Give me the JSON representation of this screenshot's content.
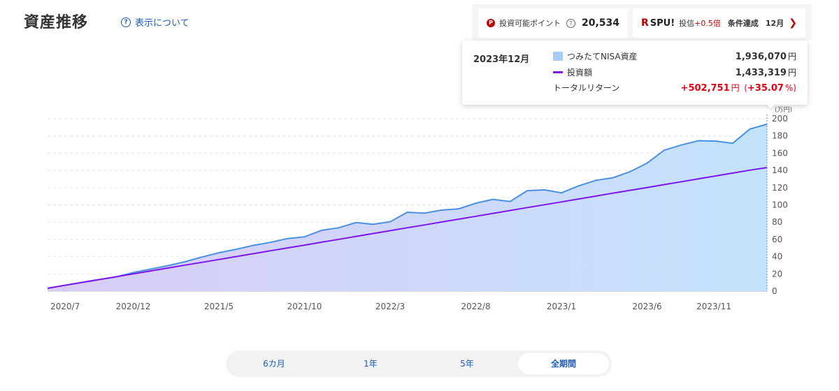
{
  "header": {
    "title": "資産推移",
    "help_label": "表示について"
  },
  "points": {
    "label": "投資可能ポイント",
    "value": "20,534"
  },
  "spu": {
    "logo": "SPU!",
    "text": "投信",
    "bonus": "+0.5倍",
    "condition": "条件達成",
    "month": "12月"
  },
  "tooltip": {
    "date": "2023年12月",
    "asset_label": "つみたてNISA資産",
    "asset_value": "1,936,070",
    "invest_label": "投資額",
    "invest_value": "1,433,319",
    "return_label": "トータルリターン",
    "return_value": "+502,751",
    "return_pct": "+35.07",
    "unit": "円",
    "pct_open": "(",
    "pct_close": "%)"
  },
  "periods": [
    {
      "label": "6カ月",
      "active": false
    },
    {
      "label": "1年",
      "active": false
    },
    {
      "label": "5年",
      "active": false
    },
    {
      "label": "全期間",
      "active": true
    }
  ],
  "colors": {
    "asset_line": "#4a90e2",
    "asset_fill": "#bfe0fb",
    "invest_line": "#7d16ed",
    "accent_red": "#bf0000"
  },
  "chart_data": {
    "type": "area",
    "y_unit": "(万円)",
    "ylim": [
      0,
      200
    ],
    "yticks": [
      0,
      20,
      40,
      60,
      80,
      100,
      120,
      140,
      160,
      180,
      200
    ],
    "x_tick_labels": [
      "2020/7",
      "2020/12",
      "2021/5",
      "2021/10",
      "2022/3",
      "2022/8",
      "2023/1",
      "2023/6",
      "2023/11"
    ],
    "x_tick_index": [
      0,
      5,
      10,
      15,
      20,
      25,
      30,
      35,
      40
    ],
    "grid": true,
    "series": [
      {
        "name": "つみたてNISA資産",
        "values": [
          3.3,
          6.8,
          10.3,
          13.5,
          16.5,
          21.5,
          25.5,
          29.5,
          34,
          39.5,
          44.5,
          48.5,
          53,
          56.5,
          61,
          63,
          70.5,
          73.5,
          79.5,
          77.5,
          80.5,
          91.5,
          90.5,
          94,
          95.5,
          102,
          106.5,
          104,
          116.5,
          117.5,
          114,
          122,
          128.5,
          131.5,
          138.5,
          148.5,
          163.5,
          169.5,
          174.5,
          174,
          171.5,
          188,
          193.6
        ]
      },
      {
        "name": "投資額",
        "values": [
          3.3,
          6.7,
          10.0,
          13.4,
          16.7,
          20.0,
          23.4,
          26.7,
          30.1,
          33.4,
          36.7,
          40.1,
          43.4,
          46.8,
          50.1,
          53.4,
          56.8,
          60.1,
          63.5,
          66.8,
          70.1,
          73.5,
          76.8,
          80.2,
          83.5,
          86.8,
          90.2,
          93.5,
          96.9,
          100.2,
          103.5,
          106.9,
          110.2,
          113.6,
          116.9,
          120.2,
          123.6,
          126.9,
          130.3,
          133.6,
          136.9,
          140.3,
          143.3
        ]
      }
    ]
  }
}
